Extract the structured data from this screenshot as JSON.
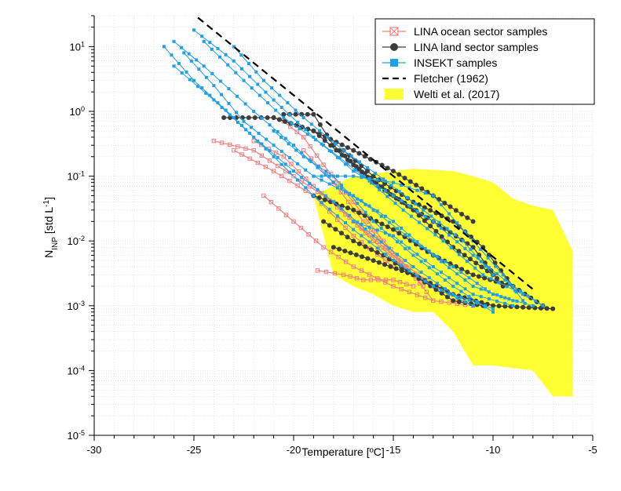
{
  "chart_data": {
    "type": "scatter",
    "title": "",
    "xlabel": "Temperature [ºC]",
    "ylabel": {
      "base": "N",
      "sub": "INP",
      "rest": " [std L",
      "sup": "-1",
      "close": "]"
    },
    "xlim": [
      -30,
      -5
    ],
    "ylim": [
      1e-05,
      30
    ],
    "yscale": "log",
    "grid": true,
    "legend_position": "top-right",
    "x_ticks": [
      -30,
      -25,
      -20,
      -15,
      -10,
      -5
    ],
    "x_tick_labels": [
      "-30",
      "-25",
      "-20",
      "-15",
      "-10",
      "-5"
    ],
    "y_ticks": [
      {
        "value": 1e-05,
        "base": "10",
        "exp": "-5"
      },
      {
        "value": 0.0001,
        "base": "10",
        "exp": "-4"
      },
      {
        "value": 0.001,
        "base": "10",
        "exp": "-3"
      },
      {
        "value": 0.01,
        "base": "10",
        "exp": "-2"
      },
      {
        "value": 0.1,
        "base": "10",
        "exp": "-1"
      },
      {
        "value": 1,
        "base": "10",
        "exp": "0"
      },
      {
        "value": 10,
        "base": "10",
        "exp": "1"
      }
    ],
    "legend": [
      {
        "label": "LINA ocean sector samples",
        "kind": "ocean"
      },
      {
        "label": "LINA land sector samples",
        "kind": "land"
      },
      {
        "label": "INSEKT samples",
        "kind": "insekt"
      },
      {
        "label": "Fletcher (1962)",
        "kind": "fletcher"
      },
      {
        "label": " Welti et al. (2017)",
        "kind": "welti"
      }
    ],
    "colors": {
      "ocean": "#f08080",
      "land": "#3c3c3c",
      "insekt": "#1ea0e6",
      "fletcher": "#000000",
      "welti": "#ffff33"
    },
    "welti_band": {
      "upper": [
        [
          -19,
          0.05
        ],
        [
          -17,
          0.1
        ],
        [
          -14,
          0.13
        ],
        [
          -12,
          0.12
        ],
        [
          -11,
          0.1
        ],
        [
          -10,
          0.08
        ],
        [
          -9,
          0.045
        ],
        [
          -8,
          0.035
        ],
        [
          -7,
          0.03
        ],
        [
          -6,
          0.007
        ]
      ],
      "lower": [
        [
          -6,
          4e-05
        ],
        [
          -7,
          4e-05
        ],
        [
          -8,
          0.0001
        ],
        [
          -10,
          0.00012
        ],
        [
          -11,
          0.00012
        ],
        [
          -12,
          0.0004
        ],
        [
          -13,
          0.0008
        ],
        [
          -14,
          0.0008
        ],
        [
          -15,
          0.001
        ],
        [
          -16,
          0.0015
        ],
        [
          -17,
          0.002
        ],
        [
          -18,
          0.003
        ],
        [
          -19,
          0.05
        ]
      ]
    },
    "fletcher": [
      [
        -24.8,
        28
      ],
      [
        -8,
        0.0018
      ]
    ],
    "series": [
      {
        "name": "LINA ocean sector samples",
        "kind": "ocean",
        "curves": [
          [
            [
              -24,
              0.35
            ],
            [
              -22,
              0.25
            ],
            [
              -20,
              0.1
            ],
            [
              -18,
              0.04
            ],
            [
              -16,
              0.01
            ],
            [
              -14,
              0.003
            ],
            [
              -13,
              0.0012
            ]
          ],
          [
            [
              -22,
              0.35
            ],
            [
              -20.5,
              0.2
            ],
            [
              -19,
              0.07
            ],
            [
              -17,
              0.02
            ],
            [
              -15,
              0.006
            ],
            [
              -13,
              0.002
            ]
          ],
          [
            [
              -20.5,
              0.7
            ],
            [
              -19.5,
              0.4
            ],
            [
              -18.5,
              0.15
            ],
            [
              -17,
              0.04
            ],
            [
              -15.5,
              0.01
            ],
            [
              -14,
              0.003
            ],
            [
              -12,
              0.0015
            ]
          ],
          [
            [
              -21.5,
              0.05
            ],
            [
              -20,
              0.02
            ],
            [
              -18.5,
              0.008
            ],
            [
              -17,
              0.004
            ],
            [
              -15,
              0.002
            ],
            [
              -13,
              0.0012
            ],
            [
              -11,
              0.001
            ]
          ],
          [
            [
              -19.5,
              0.25
            ],
            [
              -18,
              0.08
            ],
            [
              -16.5,
              0.02
            ],
            [
              -15,
              0.006
            ],
            [
              -13.5,
              0.002
            ]
          ],
          [
            [
              -23,
              0.25
            ],
            [
              -21,
              0.12
            ],
            [
              -19,
              0.05
            ],
            [
              -17,
              0.012
            ],
            [
              -15,
              0.004
            ]
          ],
          [
            [
              -18.8,
              0.0035
            ],
            [
              -17.5,
              0.003
            ],
            [
              -16.5,
              0.0025
            ],
            [
              -15,
              0.0025
            ],
            [
              -14,
              0.002
            ]
          ]
        ]
      },
      {
        "name": "LINA land sector samples",
        "kind": "land",
        "curves": [
          [
            [
              -21,
              0.8
            ],
            [
              -19,
              0.5
            ],
            [
              -17,
              0.15
            ],
            [
              -15,
              0.05
            ],
            [
              -13,
              0.02
            ],
            [
              -11,
              0.008
            ],
            [
              -9.5,
              0.002
            ]
          ],
          [
            [
              -23.5,
              0.8
            ],
            [
              -21,
              0.8
            ],
            [
              -19,
              0.5
            ],
            [
              -17,
              0.25
            ],
            [
              -15,
              0.12
            ],
            [
              -13,
              0.05
            ],
            [
              -11,
              0.02
            ]
          ],
          [
            [
              -20.5,
              0.9
            ],
            [
              -19,
              0.9
            ],
            [
              -18,
              0.3
            ],
            [
              -16,
              0.08
            ],
            [
              -14,
              0.03
            ],
            [
              -12,
              0.008
            ],
            [
              -10,
              0.003
            ]
          ],
          [
            [
              -19,
              0.05
            ],
            [
              -17,
              0.03
            ],
            [
              -15,
              0.015
            ],
            [
              -13,
              0.006
            ],
            [
              -11,
              0.003
            ],
            [
              -9,
              0.002
            ],
            [
              -7.5,
              0.001
            ]
          ],
          [
            [
              -18,
              0.008
            ],
            [
              -16,
              0.005
            ],
            [
              -14,
              0.003
            ],
            [
              -12,
              0.0015
            ],
            [
              -10,
              0.001
            ],
            [
              -7,
              0.0009
            ]
          ],
          [
            [
              -17.5,
              0.25
            ],
            [
              -16,
              0.1
            ],
            [
              -14,
              0.04
            ],
            [
              -12,
              0.02
            ],
            [
              -10.5,
              0.008
            ],
            [
              -9,
              0.002
            ]
          ],
          [
            [
              -18.5,
              0.02
            ],
            [
              -17,
              0.01
            ],
            [
              -15.5,
              0.006
            ],
            [
              -14,
              0.003
            ],
            [
              -12,
              0.0012
            ],
            [
              -10.5,
              0.001
            ]
          ]
        ]
      },
      {
        "name": "INSEKT samples",
        "kind": "insekt",
        "curves": [
          [
            [
              -26.5,
              10
            ],
            [
              -25,
              3
            ],
            [
              -23,
              0.8
            ],
            [
              -21,
              0.2
            ],
            [
              -19,
              0.05
            ],
            [
              -17,
              0.015
            ],
            [
              -15,
              0.005
            ],
            [
              -13,
              0.002
            ],
            [
              -11,
              0.001
            ]
          ],
          [
            [
              -26,
              12
            ],
            [
              -24.5,
              5
            ],
            [
              -22,
              1
            ],
            [
              -20,
              0.3
            ],
            [
              -18,
              0.08
            ],
            [
              -16,
              0.03
            ],
            [
              -14,
              0.01
            ],
            [
              -12,
              0.004
            ],
            [
              -10,
              0.0015
            ],
            [
              -8,
              0.001
            ]
          ],
          [
            [
              -25,
              18
            ],
            [
              -23,
              6
            ],
            [
              -21,
              1.5
            ],
            [
              -19,
              0.4
            ],
            [
              -17,
              0.12
            ],
            [
              -15,
              0.05
            ],
            [
              -13,
              0.02
            ],
            [
              -11,
              0.006
            ],
            [
              -9,
              0.002
            ],
            [
              -7.5,
              0.001
            ]
          ],
          [
            [
              -24.5,
              12
            ],
            [
              -22.5,
              3
            ],
            [
              -20.5,
              0.8
            ],
            [
              -18.5,
              0.3
            ],
            [
              -16.5,
              0.1
            ],
            [
              -14.5,
              0.03
            ],
            [
              -12.5,
              0.01
            ],
            [
              -10.5,
              0.003
            ],
            [
              -8.5,
              0.0015
            ]
          ],
          [
            [
              -26,
              5
            ],
            [
              -24,
              1.5
            ],
            [
              -22,
              0.4
            ],
            [
              -20,
              0.12
            ],
            [
              -18,
              0.04
            ],
            [
              -16,
              0.012
            ],
            [
              -14,
              0.004
            ],
            [
              -12,
              0.0015
            ],
            [
              -10,
              0.0009
            ]
          ],
          [
            [
              -23,
              10
            ],
            [
              -21.5,
              3
            ],
            [
              -19.5,
              0.8
            ],
            [
              -17.5,
              0.25
            ],
            [
              -15.5,
              0.09
            ],
            [
              -13.5,
              0.03
            ],
            [
              -11.5,
              0.01
            ],
            [
              -10,
              0.003
            ]
          ],
          [
            [
              -25.5,
              8
            ],
            [
              -24,
              2.5
            ],
            [
              -22.5,
              0.7
            ],
            [
              -21,
              0.3
            ],
            [
              -19,
              0.1
            ],
            [
              -17,
              0.05
            ],
            [
              -15,
              0.02
            ],
            [
              -13,
              0.006
            ],
            [
              -11,
              0.002
            ],
            [
              -9,
              0.0012
            ]
          ],
          [
            [
              -19,
              0.1
            ],
            [
              -17,
              0.1
            ],
            [
              -15,
              0.08
            ],
            [
              -13,
              0.05
            ],
            [
              -11,
              0.01
            ],
            [
              -9.5,
              0.003
            ],
            [
              -8.5,
              0.0012
            ]
          ],
          [
            [
              -17,
              0.02
            ],
            [
              -15,
              0.012
            ],
            [
              -13,
              0.004
            ],
            [
              -11,
              0.0015
            ],
            [
              -9,
              0.001
            ]
          ],
          [
            [
              -21,
              0.5
            ],
            [
              -19.5,
              0.2
            ],
            [
              -18,
              0.1
            ],
            [
              -16,
              0.02
            ],
            [
              -14,
              0.006
            ],
            [
              -12,
              0.002
            ],
            [
              -10,
              0.0008
            ]
          ]
        ]
      }
    ]
  }
}
